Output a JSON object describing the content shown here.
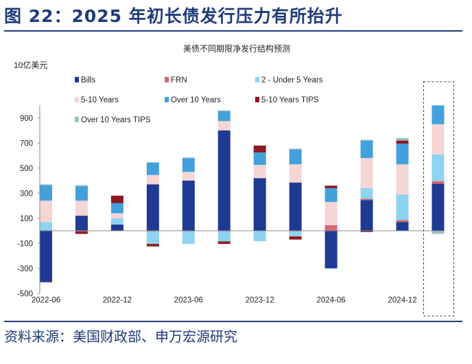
{
  "figure_title": "图 22：2025 年初长债发行压力有所抬升",
  "source": "资料来源：美国财政部、申万宏源研究",
  "chart_data": {
    "type": "bar",
    "stacked": true,
    "title": "美债不同期限净发行结构预测",
    "ylabel": "10亿美元",
    "ylim": [
      -500,
      1000
    ],
    "yticks": [
      -500,
      -300,
      -100,
      100,
      300,
      500,
      700,
      900
    ],
    "x_tick_labels": [
      "2022-06",
      "2022-12",
      "2023-06",
      "2023-12",
      "2024-06",
      "2024-12"
    ],
    "categories": [
      "2022-06",
      "2022-09",
      "2022-12",
      "2023-03",
      "2023-06",
      "2023-09",
      "2023-12",
      "2024-03",
      "2024-06",
      "2024-09",
      "2024-12",
      "2025-03"
    ],
    "highlight": "last category (forecast) boxed with dashed line",
    "grid": false,
    "legend": "top, 3 columns",
    "series": [
      {
        "name": "Bills",
        "color": "#1F3A93",
        "values": [
          -410,
          120,
          50,
          370,
          400,
          800,
          420,
          385,
          -300,
          245,
          70,
          375
        ]
      },
      {
        "name": "FRN",
        "color": "#D9666E",
        "values": [
          -2,
          -5,
          0,
          -5,
          -5,
          -5,
          -3,
          -5,
          45,
          10,
          15,
          20
        ]
      },
      {
        "name": "2 - Under 5 Years",
        "color": "#8ED3F0",
        "values": [
          70,
          0,
          50,
          -100,
          -100,
          -80,
          -80,
          -40,
          0,
          85,
          205,
          215
        ]
      },
      {
        "name": "5-10 Years",
        "color": "#F6D5D5",
        "values": [
          170,
          120,
          40,
          75,
          70,
          75,
          105,
          145,
          185,
          240,
          240,
          240
        ]
      },
      {
        "name": "Over 10 Years",
        "color": "#42A1DC",
        "values": [
          125,
          115,
          80,
          100,
          110,
          80,
          100,
          120,
          110,
          140,
          165,
          150
        ]
      },
      {
        "name": "5-10 Years TIPS",
        "color": "#8B1A22",
        "values": [
          0,
          -20,
          60,
          -20,
          0,
          -20,
          55,
          -25,
          20,
          -10,
          25,
          0
        ]
      },
      {
        "name": "Over 10 Years TIPS",
        "color": "#9EBFC9",
        "values": [
          5,
          10,
          0,
          0,
          5,
          5,
          0,
          5,
          0,
          5,
          20,
          -25
        ]
      }
    ]
  }
}
